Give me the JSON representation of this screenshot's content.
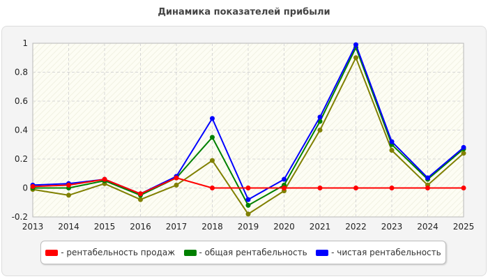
{
  "chart_data": {
    "type": "line",
    "title": "Динамика показателей прибыли",
    "categories": [
      "2013",
      "2014",
      "2015",
      "2016",
      "2017",
      "2018",
      "2019",
      "2020",
      "2021",
      "2022",
      "2023",
      "2024",
      "2025"
    ],
    "ylim": [
      -0.2,
      1
    ],
    "yticks": [
      "-0.2",
      "0",
      "0.2",
      "0.4",
      "0.6",
      "0.8",
      "1"
    ],
    "grid": true,
    "legend_position": "bottom",
    "series": [
      {
        "name": "- рентабельность продаж",
        "color": "#ff0000",
        "values": [
          0.01,
          0.02,
          0.06,
          -0.04,
          0.07,
          0.0,
          0.0,
          0.0,
          0.0,
          0.0,
          0.0,
          0.0,
          0.0
        ]
      },
      {
        "name": "- общая рентабельность",
        "color": "#008000",
        "values": [
          0.0,
          0.0,
          0.05,
          -0.05,
          0.07,
          0.35,
          -0.12,
          0.02,
          0.46,
          0.97,
          0.3,
          0.06,
          0.27
        ]
      },
      {
        "name": "- чистая рентабельность",
        "color": "#0000ff",
        "values": [
          0.02,
          0.03,
          0.06,
          -0.04,
          0.08,
          0.48,
          -0.08,
          0.06,
          0.49,
          0.99,
          0.32,
          0.07,
          0.28
        ]
      },
      {
        "name": "",
        "color": "#808000",
        "values": [
          -0.01,
          -0.05,
          0.03,
          -0.08,
          0.02,
          0.19,
          -0.18,
          -0.02,
          0.4,
          0.9,
          0.26,
          0.02,
          0.24
        ]
      }
    ]
  }
}
